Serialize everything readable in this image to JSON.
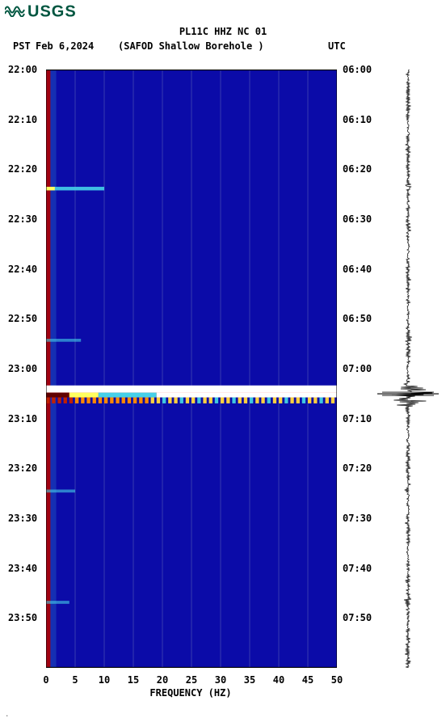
{
  "logo": {
    "text": "USGS",
    "color": "#005640"
  },
  "header": {
    "title": "PL11C HHZ NC 01",
    "tz_left": "PST",
    "date": "Feb 6,2024",
    "station": "(SAFOD Shallow Borehole )",
    "tz_right": "UTC"
  },
  "chart": {
    "type": "spectrogram",
    "background_color": "#0b0ba8",
    "low_freq_edge_color": "#b00000",
    "grid_color": "#7882be",
    "x_label": "FREQUENCY (HZ)",
    "xlim": [
      0,
      50
    ],
    "x_ticks": [
      0,
      5,
      10,
      15,
      20,
      25,
      30,
      35,
      40,
      45,
      50
    ],
    "grid_positions_pct": [
      10,
      20,
      30,
      40,
      50,
      60,
      70,
      80,
      90
    ],
    "y_left_ticks": [
      "22:00",
      "22:10",
      "22:20",
      "22:30",
      "22:40",
      "22:50",
      "23:00",
      "23:10",
      "23:20",
      "23:30",
      "23:40",
      "23:50"
    ],
    "y_right_ticks": [
      "06:00",
      "06:10",
      "06:20",
      "06:30",
      "06:40",
      "06:50",
      "07:00",
      "07:10",
      "07:20",
      "07:30",
      "07:40",
      "07:50"
    ],
    "y_tick_positions_pct": [
      0,
      8.33,
      16.67,
      25,
      33.33,
      41.67,
      50,
      58.33,
      66.67,
      75,
      83.33,
      91.67
    ],
    "gap_band": {
      "top_pct": 52.8,
      "height_pct": 1.2,
      "color": "#ffffff"
    },
    "events": [
      {
        "top_pct": 19.6,
        "intensity": "medium",
        "freq_extent_pct": 20
      },
      {
        "top_pct": 45.0,
        "intensity": "low",
        "freq_extent_pct": 12
      },
      {
        "top_pct": 54.0,
        "intensity": "high",
        "freq_extent_pct": 100
      },
      {
        "top_pct": 54.8,
        "intensity": "high2",
        "freq_extent_pct": 100
      },
      {
        "top_pct": 70.2,
        "intensity": "low",
        "freq_extent_pct": 10
      },
      {
        "top_pct": 88.8,
        "intensity": "low",
        "freq_extent_pct": 8
      }
    ],
    "colormap": {
      "low": "#0b0ba8",
      "medium": "#45d0e8",
      "high": "#ffff60",
      "veryhigh": "#ff3000",
      "peak": "#ffffff"
    }
  },
  "seismogram": {
    "color": "#000000",
    "background": "#ffffff",
    "baseline_pct": 50,
    "big_event_top_pct": 54.2,
    "big_event_amp_pct": 95
  },
  "footer": {
    "mark": "."
  }
}
